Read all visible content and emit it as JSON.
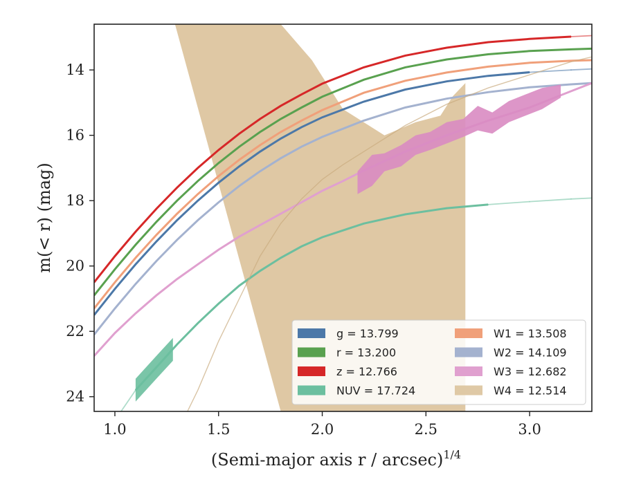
{
  "chart_data": {
    "type": "line",
    "title": "",
    "xlabel": "(Semi-major axis r / arcsec)",
    "xlabel_superscript": "1/4",
    "ylabel": "m(< r) (mag)",
    "xlim": [
      0.9,
      3.3
    ],
    "ylim": [
      24.45,
      12.6
    ],
    "y_inverted": true,
    "x_ticks": [
      1.0,
      1.5,
      2.0,
      2.5,
      3.0
    ],
    "x_tick_labels": [
      "1.0",
      "1.5",
      "2.0",
      "2.5",
      "3.0"
    ],
    "y_ticks": [
      14,
      16,
      18,
      20,
      22,
      24
    ],
    "y_tick_labels": [
      "14",
      "16",
      "18",
      "20",
      "22",
      "24"
    ],
    "grid": false,
    "legend_position": "bottom-right",
    "legend_columns": 2,
    "series": [
      {
        "name": "g = 13.799",
        "label_band": "g",
        "color": "#4c78a8",
        "x": [
          0.9,
          1.0,
          1.1,
          1.2,
          1.3,
          1.4,
          1.5,
          1.6,
          1.7,
          1.8,
          1.9,
          2.0,
          2.2,
          2.4,
          2.6,
          2.8,
          3.0,
          3.2,
          3.3
        ],
        "y": [
          21.5,
          20.7,
          19.95,
          19.25,
          18.6,
          18.0,
          17.45,
          16.95,
          16.5,
          16.1,
          15.75,
          15.45,
          14.97,
          14.6,
          14.35,
          14.18,
          14.07,
          14.0,
          13.97
        ],
        "solid_until": 3.13
      },
      {
        "name": "r = 13.200",
        "label_band": "r",
        "color": "#59a14f",
        "x": [
          0.9,
          1.0,
          1.1,
          1.2,
          1.3,
          1.4,
          1.5,
          1.6,
          1.7,
          1.8,
          1.9,
          2.0,
          2.2,
          2.4,
          2.6,
          2.8,
          3.0,
          3.2,
          3.3
        ],
        "y": [
          20.9,
          20.1,
          19.35,
          18.65,
          18.0,
          17.4,
          16.85,
          16.35,
          15.9,
          15.5,
          15.15,
          14.82,
          14.3,
          13.92,
          13.68,
          13.52,
          13.42,
          13.37,
          13.35
        ],
        "solid_until": 3.3
      },
      {
        "name": "z = 12.766",
        "label_band": "z",
        "color": "#d62728",
        "x": [
          0.9,
          1.0,
          1.1,
          1.2,
          1.3,
          1.4,
          1.5,
          1.6,
          1.7,
          1.8,
          1.9,
          2.0,
          2.2,
          2.4,
          2.6,
          2.8,
          3.0,
          3.2,
          3.3
        ],
        "y": [
          20.5,
          19.7,
          18.95,
          18.25,
          17.6,
          17.0,
          16.45,
          15.95,
          15.5,
          15.1,
          14.75,
          14.42,
          13.92,
          13.56,
          13.32,
          13.15,
          13.05,
          12.98,
          12.95
        ],
        "solid_until": 3.2
      },
      {
        "name": "NUV = 17.724",
        "label_band": "NUV",
        "color": "#6cbf9f",
        "x": [
          1.03,
          1.1,
          1.2,
          1.3,
          1.4,
          1.5,
          1.6,
          1.7,
          1.8,
          1.9,
          2.0,
          2.2,
          2.4,
          2.6,
          2.8,
          3.0,
          3.2,
          3.3
        ],
        "y": [
          24.45,
          23.8,
          23.1,
          22.4,
          21.75,
          21.15,
          20.6,
          20.15,
          19.75,
          19.4,
          19.12,
          18.7,
          18.42,
          18.23,
          18.12,
          18.03,
          17.95,
          17.92
        ],
        "solid_from": 1.1,
        "solid_until": 2.93
      },
      {
        "name": "W1 = 13.508",
        "label_band": "W1",
        "color": "#f0a07a",
        "x": [
          0.9,
          1.0,
          1.1,
          1.2,
          1.3,
          1.4,
          1.5,
          1.6,
          1.7,
          1.8,
          1.9,
          2.0,
          2.2,
          2.4,
          2.6,
          2.8,
          3.0,
          3.2,
          3.3
        ],
        "y": [
          21.3,
          20.5,
          19.75,
          19.05,
          18.4,
          17.8,
          17.25,
          16.75,
          16.3,
          15.9,
          15.55,
          15.23,
          14.7,
          14.33,
          14.08,
          13.9,
          13.78,
          13.72,
          13.7
        ],
        "solid_until": 3.3
      },
      {
        "name": "W2 = 14.109",
        "label_band": "W2",
        "color": "#a4b2cf",
        "x": [
          0.9,
          1.0,
          1.1,
          1.2,
          1.3,
          1.4,
          1.5,
          1.6,
          1.7,
          1.8,
          1.9,
          2.0,
          2.2,
          2.4,
          2.6,
          2.8,
          3.0,
          3.2,
          3.3
        ],
        "y": [
          22.1,
          21.3,
          20.55,
          19.85,
          19.2,
          18.6,
          18.05,
          17.55,
          17.1,
          16.7,
          16.35,
          16.05,
          15.55,
          15.15,
          14.88,
          14.68,
          14.53,
          14.44,
          14.4
        ],
        "solid_until": 3.3
      },
      {
        "name": "W3 = 12.682",
        "label_band": "W3",
        "color": "#e0a0cf",
        "x": [
          0.9,
          1.0,
          1.1,
          1.2,
          1.3,
          1.4,
          1.5,
          1.6,
          1.7,
          1.8,
          1.9,
          2.0,
          2.1,
          2.2,
          2.4,
          2.6,
          2.8,
          3.0,
          3.2,
          3.3
        ],
        "y": [
          22.75,
          22.05,
          21.45,
          20.9,
          20.4,
          19.95,
          19.5,
          19.1,
          18.75,
          18.4,
          18.05,
          17.7,
          17.4,
          17.08,
          16.5,
          16.0,
          15.55,
          15.15,
          14.65,
          14.4
        ],
        "band_x": [
          2.17,
          2.24,
          2.3,
          2.38,
          2.45,
          2.52,
          2.6,
          2.68,
          2.75,
          2.82,
          2.9,
          2.98,
          3.06,
          3.15
        ],
        "band_lower": [
          17.8,
          17.55,
          17.1,
          16.95,
          16.6,
          16.45,
          16.25,
          16.05,
          15.85,
          15.95,
          15.6,
          15.4,
          15.2,
          14.85
        ],
        "band_upper": [
          17.1,
          16.6,
          16.55,
          16.3,
          16.0,
          15.9,
          15.6,
          15.5,
          15.1,
          15.3,
          14.95,
          14.75,
          14.55,
          14.45
        ]
      },
      {
        "name": "W4 = 12.514",
        "label_band": "W4",
        "color": "#dcc39c",
        "x": [
          1.35,
          1.4,
          1.5,
          1.6,
          1.7,
          1.8,
          1.9,
          2.0,
          2.1,
          2.2,
          2.4,
          2.6,
          2.8,
          3.0,
          3.2,
          3.3
        ],
        "y": [
          24.45,
          23.8,
          22.3,
          21.0,
          19.7,
          18.7,
          17.95,
          17.35,
          16.9,
          16.5,
          15.7,
          15.05,
          14.55,
          14.15,
          13.75,
          13.6
        ],
        "envelope_x": [
          1.29,
          1.37,
          1.55,
          1.8,
          1.95,
          2.1,
          2.3,
          2.45,
          2.57,
          2.63,
          2.69,
          2.69,
          2.55,
          2.38,
          2.22,
          2.08,
          1.95,
          1.8
        ],
        "envelope_y": [
          12.6,
          12.6,
          12.6,
          12.6,
          13.7,
          15.2,
          16.0,
          15.6,
          15.4,
          14.8,
          14.4,
          24.45,
          24.45,
          24.45,
          24.45,
          24.45,
          24.45,
          24.45
        ]
      }
    ]
  }
}
